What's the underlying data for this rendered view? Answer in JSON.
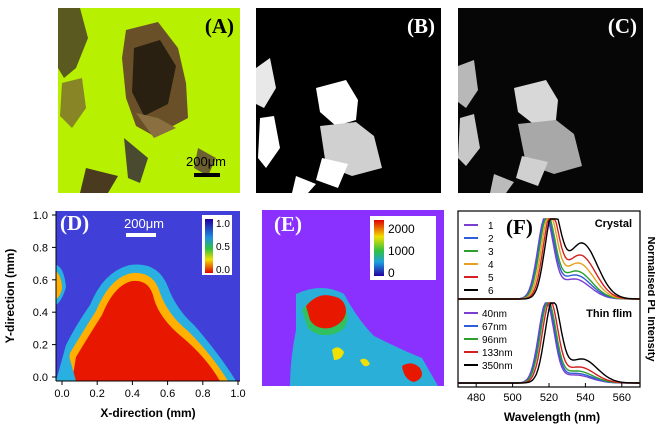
{
  "panels": {
    "A": {
      "label": "(A)",
      "scalebar_label": "200μm"
    },
    "B": {
      "label": "(B)"
    },
    "C": {
      "label": "(C)"
    },
    "D": {
      "label": "(D)",
      "scalebar_label": "200μm"
    },
    "E": {
      "label": "(E)"
    },
    "F": {
      "label": "(F)"
    }
  },
  "chart_data": [
    {
      "type": "heatmap",
      "panel": "D",
      "xlabel": "X-direction (mm)",
      "ylabel": "Y-direction (mm)",
      "xlim": [
        0.0,
        1.0
      ],
      "ylim": [
        0.0,
        1.0
      ],
      "x_ticks": [
        "0.0",
        "0.2",
        "0.4",
        "0.6",
        "0.8",
        "1.0"
      ],
      "y_ticks": [
        "0.0",
        "0.2",
        "0.4",
        "0.6",
        "0.8",
        "1.0"
      ],
      "colorbar": {
        "ticks": [
          "1.0",
          "0.5",
          "0.0"
        ],
        "range": [
          0.0,
          1.0
        ]
      }
    },
    {
      "type": "heatmap",
      "panel": "E",
      "colorbar": {
        "ticks": [
          "2000",
          "1000",
          "0"
        ],
        "range": [
          0,
          2400
        ]
      }
    },
    {
      "type": "line",
      "panel": "F",
      "xlabel": "Wavelength (nm)",
      "ylabel": "Normalised PL Intensity",
      "xlim": [
        470,
        570
      ],
      "x_ticks": [
        "480",
        "500",
        "520",
        "540",
        "560"
      ],
      "groups": [
        {
          "title": "Crystal",
          "series": [
            {
              "name": "1",
              "color": "#7b3fd0",
              "peak": 518,
              "shoulder": 0.25
            },
            {
              "name": "2",
              "color": "#2e5fd6",
              "peak": 518.5,
              "shoulder": 0.3
            },
            {
              "name": "3",
              "color": "#2e9e2e",
              "peak": 519,
              "shoulder": 0.35
            },
            {
              "name": "4",
              "color": "#e8a020",
              "peak": 520,
              "shoulder": 0.45
            },
            {
              "name": "5",
              "color": "#d42020",
              "peak": 521,
              "shoulder": 0.55
            },
            {
              "name": "6",
              "color": "#000000",
              "peak": 522,
              "shoulder": 0.7
            }
          ]
        },
        {
          "title": "Thin flim",
          "series": [
            {
              "name": "40nm",
              "color": "#7b3fd0",
              "peak": 518.5,
              "shoulder": 0.1
            },
            {
              "name": "67nm",
              "color": "#2e5fd6",
              "peak": 519,
              "shoulder": 0.12
            },
            {
              "name": "96nm",
              "color": "#2e9e2e",
              "peak": 519.5,
              "shoulder": 0.15
            },
            {
              "name": "133nm",
              "color": "#d42020",
              "peak": 520.5,
              "shoulder": 0.2
            },
            {
              "name": "350nm",
              "color": "#000000",
              "peak": 522,
              "shoulder": 0.3
            }
          ]
        }
      ]
    }
  ]
}
